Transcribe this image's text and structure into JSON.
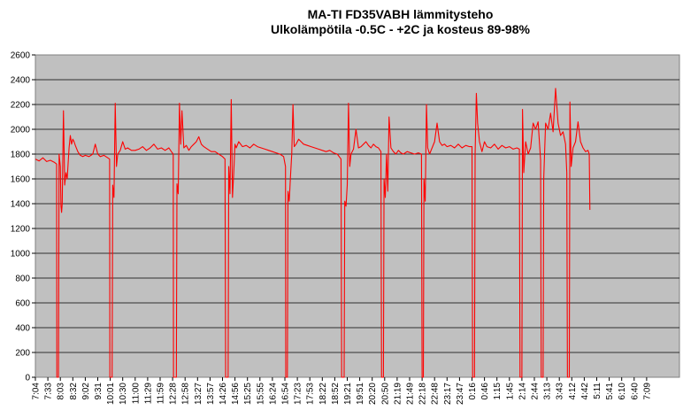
{
  "chart_data": {
    "type": "line",
    "title": "MA-TI FD35VABH lämmitysteho",
    "subtitle": "Ulkolämpötila  -0.5C - +2C ja kosteus 89-98%",
    "xlabel": "",
    "ylabel": "",
    "ylim": [
      0,
      2600
    ],
    "yticks": [
      0,
      200,
      400,
      600,
      800,
      1000,
      1200,
      1400,
      1600,
      1800,
      2000,
      2200,
      2400,
      2600
    ],
    "x_ticks": [
      "7:04",
      "7:33",
      "8:03",
      "8:32",
      "9:02",
      "9:31",
      "10:01",
      "10:30",
      "11:00",
      "11:29",
      "11:59",
      "12:28",
      "12:58",
      "13:27",
      "13:57",
      "14:26",
      "14:56",
      "15:25",
      "15:55",
      "16:24",
      "16:54",
      "17:23",
      "17:53",
      "18:22",
      "18:52",
      "19:21",
      "19:51",
      "20:20",
      "20:50",
      "21:19",
      "21:49",
      "22:18",
      "22:48",
      "23:17",
      "23:47",
      "0:16",
      "0:46",
      "1:15",
      "1:45",
      "2:14",
      "2:44",
      "3:13",
      "3:43",
      "4:12",
      "4:42",
      "5:11",
      "5:41",
      "6:10",
      "6:40",
      "7:09"
    ],
    "grid": "horizontal",
    "legend": "none",
    "series": [
      {
        "color": "#ff0000",
        "points": [
          [
            0,
            1760
          ],
          [
            0.3,
            1745
          ],
          [
            0.6,
            1770
          ],
          [
            0.9,
            1740
          ],
          [
            1.2,
            1750
          ],
          [
            1.5,
            1735
          ],
          [
            1.7,
            1720
          ],
          [
            1.72,
            0
          ],
          [
            1.85,
            0
          ],
          [
            1.9,
            1800
          ],
          [
            2.0,
            1700
          ],
          [
            2.05,
            1380
          ],
          [
            2.1,
            1330
          ],
          [
            2.15,
            1400
          ],
          [
            2.25,
            2150
          ],
          [
            2.35,
            1550
          ],
          [
            2.45,
            1650
          ],
          [
            2.55,
            1600
          ],
          [
            2.7,
            1850
          ],
          [
            2.8,
            1950
          ],
          [
            2.9,
            1880
          ],
          [
            3.0,
            1920
          ],
          [
            3.1,
            1900
          ],
          [
            3.2,
            1870
          ],
          [
            3.4,
            1820
          ],
          [
            3.6,
            1790
          ],
          [
            3.8,
            1780
          ],
          [
            4.0,
            1790
          ],
          [
            4.3,
            1780
          ],
          [
            4.6,
            1800
          ],
          [
            4.8,
            1880
          ],
          [
            5.0,
            1800
          ],
          [
            5.2,
            1780
          ],
          [
            5.5,
            1790
          ],
          [
            5.8,
            1770
          ],
          [
            5.95,
            1760
          ],
          [
            5.97,
            0
          ],
          [
            6.15,
            0
          ],
          [
            6.2,
            1550
          ],
          [
            6.3,
            1450
          ],
          [
            6.4,
            2210
          ],
          [
            6.5,
            1700
          ],
          [
            6.6,
            1800
          ],
          [
            6.8,
            1830
          ],
          [
            7.0,
            1900
          ],
          [
            7.2,
            1840
          ],
          [
            7.4,
            1850
          ],
          [
            7.7,
            1830
          ],
          [
            8.0,
            1830
          ],
          [
            8.3,
            1840
          ],
          [
            8.6,
            1860
          ],
          [
            8.9,
            1830
          ],
          [
            9.2,
            1850
          ],
          [
            9.5,
            1880
          ],
          [
            9.8,
            1840
          ],
          [
            10.1,
            1850
          ],
          [
            10.4,
            1830
          ],
          [
            10.7,
            1850
          ],
          [
            10.9,
            1820
          ],
          [
            11.05,
            1800
          ],
          [
            11.07,
            0
          ],
          [
            11.3,
            0
          ],
          [
            11.35,
            1560
          ],
          [
            11.45,
            1480
          ],
          [
            11.55,
            2210
          ],
          [
            11.65,
            1880
          ],
          [
            11.75,
            2150
          ],
          [
            11.9,
            1850
          ],
          [
            12.1,
            1870
          ],
          [
            12.3,
            1830
          ],
          [
            12.5,
            1860
          ],
          [
            12.7,
            1880
          ],
          [
            12.9,
            1900
          ],
          [
            13.1,
            1940
          ],
          [
            13.3,
            1880
          ],
          [
            13.5,
            1860
          ],
          [
            13.8,
            1840
          ],
          [
            14.1,
            1820
          ],
          [
            14.4,
            1820
          ],
          [
            14.7,
            1800
          ],
          [
            15.0,
            1780
          ],
          [
            15.2,
            1760
          ],
          [
            15.25,
            0
          ],
          [
            15.45,
            0
          ],
          [
            15.5,
            1700
          ],
          [
            15.6,
            1480
          ],
          [
            15.7,
            2240
          ],
          [
            15.8,
            1450
          ],
          [
            15.9,
            1650
          ],
          [
            16.0,
            1880
          ],
          [
            16.1,
            1850
          ],
          [
            16.3,
            1900
          ],
          [
            16.6,
            1860
          ],
          [
            16.9,
            1870
          ],
          [
            17.2,
            1850
          ],
          [
            17.5,
            1880
          ],
          [
            17.8,
            1860
          ],
          [
            18.1,
            1850
          ],
          [
            18.4,
            1840
          ],
          [
            18.7,
            1830
          ],
          [
            19.0,
            1820
          ],
          [
            19.3,
            1810
          ],
          [
            19.6,
            1800
          ],
          [
            19.9,
            1780
          ],
          [
            20.05,
            1700
          ],
          [
            20.07,
            0
          ],
          [
            20.2,
            0
          ],
          [
            20.25,
            1500
          ],
          [
            20.35,
            1420
          ],
          [
            20.45,
            1620
          ],
          [
            20.55,
            1800
          ],
          [
            20.65,
            2200
          ],
          [
            20.75,
            1860
          ],
          [
            20.9,
            1880
          ],
          [
            21.1,
            1920
          ],
          [
            21.3,
            1900
          ],
          [
            21.5,
            1880
          ],
          [
            21.8,
            1870
          ],
          [
            22.1,
            1860
          ],
          [
            22.4,
            1850
          ],
          [
            22.7,
            1840
          ],
          [
            23.0,
            1830
          ],
          [
            23.3,
            1820
          ],
          [
            23.6,
            1830
          ],
          [
            23.9,
            1810
          ],
          [
            24.2,
            1800
          ],
          [
            24.5,
            1760
          ],
          [
            24.55,
            0
          ],
          [
            24.75,
            0
          ],
          [
            24.8,
            1420
          ],
          [
            24.9,
            1380
          ],
          [
            25.0,
            1550
          ],
          [
            25.1,
            2210
          ],
          [
            25.2,
            1700
          ],
          [
            25.3,
            1800
          ],
          [
            25.5,
            1840
          ],
          [
            25.7,
            2000
          ],
          [
            25.9,
            1850
          ],
          [
            26.1,
            1860
          ],
          [
            26.3,
            1880
          ],
          [
            26.5,
            1900
          ],
          [
            26.7,
            1870
          ],
          [
            26.9,
            1850
          ],
          [
            27.1,
            1880
          ],
          [
            27.3,
            1860
          ],
          [
            27.5,
            1850
          ],
          [
            27.7,
            1820
          ],
          [
            27.75,
            0
          ],
          [
            27.9,
            0
          ],
          [
            27.95,
            1600
          ],
          [
            28.05,
            1450
          ],
          [
            28.15,
            1800
          ],
          [
            28.25,
            1500
          ],
          [
            28.35,
            2100
          ],
          [
            28.5,
            1850
          ],
          [
            28.7,
            1820
          ],
          [
            28.9,
            1800
          ],
          [
            29.1,
            1830
          ],
          [
            29.3,
            1810
          ],
          [
            29.5,
            1800
          ],
          [
            29.8,
            1820
          ],
          [
            30.1,
            1810
          ],
          [
            30.4,
            1800
          ],
          [
            30.7,
            1810
          ],
          [
            30.95,
            1800
          ],
          [
            31.0,
            0
          ],
          [
            31.1,
            0
          ],
          [
            31.15,
            1600
          ],
          [
            31.25,
            1420
          ],
          [
            31.35,
            2200
          ],
          [
            31.45,
            1850
          ],
          [
            31.6,
            1800
          ],
          [
            31.8,
            1850
          ],
          [
            32.0,
            1900
          ],
          [
            32.2,
            2050
          ],
          [
            32.4,
            1900
          ],
          [
            32.6,
            1870
          ],
          [
            32.8,
            1880
          ],
          [
            33.0,
            1860
          ],
          [
            33.3,
            1870
          ],
          [
            33.6,
            1850
          ],
          [
            33.9,
            1880
          ],
          [
            34.2,
            1850
          ],
          [
            34.5,
            1870
          ],
          [
            34.8,
            1860
          ],
          [
            35.0,
            1860
          ],
          [
            35.05,
            0
          ],
          [
            35.2,
            0
          ],
          [
            35.25,
            1800
          ],
          [
            35.35,
            2290
          ],
          [
            35.45,
            2050
          ],
          [
            35.6,
            1900
          ],
          [
            35.8,
            1820
          ],
          [
            36.0,
            1900
          ],
          [
            36.2,
            1860
          ],
          [
            36.5,
            1850
          ],
          [
            36.8,
            1880
          ],
          [
            37.1,
            1840
          ],
          [
            37.4,
            1870
          ],
          [
            37.7,
            1850
          ],
          [
            38.0,
            1860
          ],
          [
            38.3,
            1840
          ],
          [
            38.6,
            1850
          ],
          [
            38.8,
            1840
          ],
          [
            38.85,
            0
          ],
          [
            39.0,
            0
          ],
          [
            39.05,
            2160
          ],
          [
            39.15,
            1650
          ],
          [
            39.3,
            1900
          ],
          [
            39.5,
            1800
          ],
          [
            39.7,
            1850
          ],
          [
            39.9,
            2050
          ],
          [
            40.1,
            2000
          ],
          [
            40.3,
            2060
          ],
          [
            40.5,
            1750
          ],
          [
            40.55,
            0
          ],
          [
            40.7,
            0
          ],
          [
            40.75,
            1600
          ],
          [
            40.9,
            2050
          ],
          [
            41.1,
            2000
          ],
          [
            41.3,
            2130
          ],
          [
            41.5,
            1980
          ],
          [
            41.7,
            2330
          ],
          [
            41.9,
            2050
          ],
          [
            42.1,
            1950
          ],
          [
            42.3,
            1980
          ],
          [
            42.5,
            1880
          ],
          [
            42.6,
            1650
          ],
          [
            42.65,
            0
          ],
          [
            42.8,
            0
          ],
          [
            42.85,
            2220
          ],
          [
            42.95,
            1700
          ],
          [
            43.1,
            1850
          ],
          [
            43.3,
            1900
          ],
          [
            43.5,
            2060
          ],
          [
            43.7,
            1900
          ],
          [
            43.9,
            1850
          ],
          [
            44.1,
            1820
          ],
          [
            44.3,
            1830
          ],
          [
            44.4,
            1800
          ],
          [
            44.45,
            1350
          ]
        ]
      }
    ]
  }
}
